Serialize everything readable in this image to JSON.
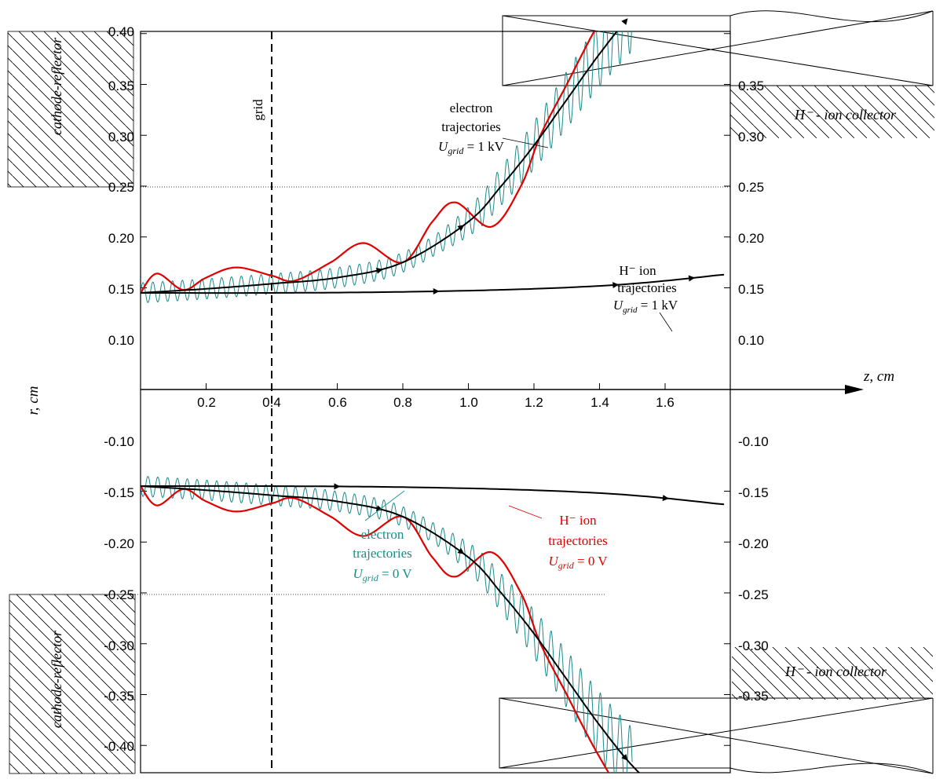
{
  "chart_data": {
    "type": "line",
    "title": "",
    "xlabel": "z, cm",
    "ylabel": "r, cm",
    "xlim": [
      0,
      1.78
    ],
    "ylim": [
      -0.4,
      0.4
    ],
    "x_ticks": [
      "0.2",
      "0.4",
      "0.6",
      "0.8",
      "1.0",
      "1.2",
      "1.4",
      "1.6"
    ],
    "y_ticks_left": [
      "0.40",
      "0.35",
      "0.30",
      "0.25",
      "0.20",
      "0.15",
      "0.10",
      "-0.10",
      "-0.15",
      "-0.20",
      "-0.25",
      "-0.30",
      "-0.35",
      "-0.40"
    ],
    "y_ticks_right": [
      "0.35",
      "0.30",
      "0.25",
      "0.20",
      "0.15",
      "0.10",
      "-0.10",
      "-0.15",
      "-0.20",
      "-0.25",
      "-0.30",
      "-0.35"
    ],
    "grid_position": 0.4,
    "colors": {
      "electron_1kV": "#000000",
      "ion_0V": "#e00000",
      "electron_0V": "#1a8a8a",
      "ion_1kV": "#000000"
    },
    "series": [
      {
        "key": "electron_1kV",
        "x": [
          0,
          0.2,
          0.4,
          0.6,
          0.8,
          1.0,
          1.1,
          1.2,
          1.3,
          1.4,
          1.5,
          1.6
        ],
        "y": [
          0.095,
          0.099,
          0.104,
          0.11,
          0.125,
          0.165,
          0.2,
          0.24,
          0.285,
          0.33,
          0.37,
          0.4
        ]
      },
      {
        "key": "ion_1kV",
        "x": [
          0,
          0.4,
          0.8,
          1.2,
          1.5,
          1.78
        ],
        "y": [
          0.095,
          0.095,
          0.096,
          0.099,
          0.104,
          0.113
        ]
      },
      {
        "key": "ion_0V",
        "x": [
          0,
          0.05,
          0.13,
          0.2,
          0.29,
          0.4,
          0.47,
          0.58,
          0.68,
          0.8,
          0.89,
          0.96,
          1.07,
          1.16,
          1.22,
          1.3,
          1.38,
          1.47
        ],
        "y": [
          0.095,
          0.114,
          0.098,
          0.11,
          0.12,
          0.112,
          0.107,
          0.125,
          0.144,
          0.125,
          0.165,
          0.184,
          0.16,
          0.2,
          0.25,
          0.3,
          0.35,
          0.4
        ]
      },
      {
        "key": "electron_0V",
        "x": [
          0,
          0.2,
          0.4,
          0.6,
          0.8,
          1.0,
          1.1,
          1.2,
          1.3,
          1.4,
          1.5
        ],
        "y": [
          0.095,
          0.099,
          0.104,
          0.11,
          0.125,
          0.165,
          0.2,
          0.24,
          0.285,
          0.33,
          0.37
        ]
      }
    ]
  },
  "labels": {
    "grid": "grid",
    "cathode_top": "cathode-reflector",
    "cathode_bottom": "cathode-reflector",
    "collector_top": "H⁻ - ion collector",
    "collector_bottom": "H⁻ - ion collector",
    "e1kv_l1": "electron",
    "e1kv_l2": "trajectories",
    "e1kv_u": "U",
    "e1kv_sub": "grid",
    "e1kv_val": " = 1 kV",
    "ion1kv_l1": "H⁻ ion",
    "ion1kv_l2": "trajectories",
    "ion1kv_u": "U",
    "ion1kv_sub": "grid",
    "ion1kv_val": " = 1 kV",
    "e0v_l1": "electron",
    "e0v_l2": "trajectories",
    "e0v_u": "U",
    "e0v_sub": "grid",
    "e0v_val": " = 0 V",
    "ion0v_l1": "H⁻ ion",
    "ion0v_l2": "trajectories",
    "ion0v_u": "U",
    "ion0v_sub": "grid",
    "ion0v_val": " = 0 V"
  }
}
